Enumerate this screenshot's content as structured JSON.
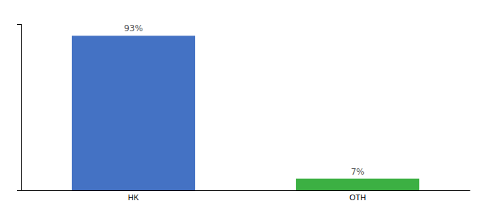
{
  "chart_data": {
    "type": "bar",
    "categories": [
      "HK",
      "OTH"
    ],
    "values": [
      93,
      7
    ],
    "value_labels": [
      "93%",
      "7%"
    ],
    "colors": [
      "#4472c4",
      "#3cb043"
    ],
    "ylim": [
      0,
      100
    ],
    "data_labels": true,
    "tick_labels": "x"
  }
}
